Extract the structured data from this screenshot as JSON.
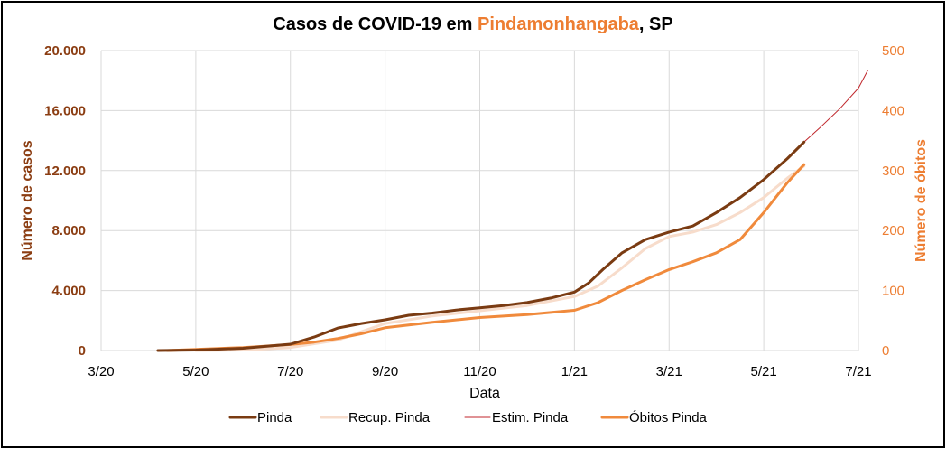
{
  "chart_data": {
    "type": "line",
    "title": {
      "prefix": "Casos de COVID-19 em ",
      "highlight": "Pindamonhangaba",
      "suffix": ", SP"
    },
    "xlabel": "Data",
    "ylabel_left": "Número de casos",
    "ylabel_right": "Número de óbitos",
    "x_ticks": [
      "3/20",
      "5/20",
      "7/20",
      "9/20",
      "11/20",
      "1/21",
      "3/21",
      "5/21",
      "7/21"
    ],
    "x_tick_months": [
      0,
      2,
      4,
      6,
      8,
      10,
      12,
      14,
      16
    ],
    "x_range_months": [
      0,
      16
    ],
    "y_left_ticks": [
      "0",
      "4.000",
      "8.000",
      "12.000",
      "16.000",
      "20.000"
    ],
    "y_left_range": [
      0,
      20000
    ],
    "y_right_ticks": [
      "0",
      "100",
      "200",
      "300",
      "400",
      "500"
    ],
    "y_right_range": [
      0,
      500
    ],
    "grid": true,
    "legend_position": "bottom",
    "colors": {
      "pinda": "#7a3b12",
      "recup": "#f7dccb",
      "estim": "#c0262b",
      "obitos": "#f08a3c",
      "left_axis": "#8b3d12",
      "right_axis": "#ed7d31",
      "grid": "#d9d9d9"
    },
    "series": [
      {
        "name": "Pinda",
        "axis": "left",
        "x": [
          1.2,
          2,
          3,
          4,
          4.5,
          5,
          5.5,
          6,
          6.5,
          7,
          7.5,
          8,
          8.5,
          9,
          9.5,
          10,
          10.3,
          10.6,
          11,
          11.5,
          12,
          12.5,
          13,
          13.5,
          14,
          14.5,
          14.85
        ],
        "y": [
          0,
          30,
          150,
          420,
          900,
          1500,
          1800,
          2050,
          2350,
          2500,
          2700,
          2850,
          3000,
          3200,
          3500,
          3900,
          4500,
          5400,
          6500,
          7400,
          7900,
          8300,
          9200,
          10200,
          11400,
          12800,
          13900
        ]
      },
      {
        "name": "Recup. Pinda",
        "axis": "left",
        "x": [
          2,
          3,
          4,
          5,
          6,
          7,
          8,
          9,
          10,
          10.5,
          11,
          11.5,
          12,
          12.5,
          13,
          13.5,
          14,
          14.5,
          14.85
        ],
        "y": [
          0,
          30,
          200,
          700,
          1800,
          2300,
          2650,
          3000,
          3600,
          4300,
          5500,
          6800,
          7600,
          7900,
          8400,
          9200,
          10200,
          11500,
          12300
        ]
      },
      {
        "name": "Estim. Pinda",
        "axis": "left",
        "x": [
          14.85,
          15.2,
          15.6,
          16,
          16.2
        ],
        "y": [
          13900,
          14900,
          16100,
          17500,
          18700
        ]
      },
      {
        "name": "Óbitos Pinda",
        "axis": "right",
        "x": [
          1.4,
          2,
          3,
          4,
          4.5,
          5,
          5.5,
          6,
          7,
          8,
          9,
          10,
          10.5,
          11,
          11.5,
          12,
          12.5,
          13,
          13.5,
          14,
          14.5,
          14.85
        ],
        "y": [
          0,
          2,
          5,
          10,
          14,
          20,
          28,
          38,
          47,
          55,
          60,
          67,
          80,
          100,
          118,
          135,
          148,
          163,
          185,
          230,
          280,
          310
        ]
      }
    ]
  }
}
